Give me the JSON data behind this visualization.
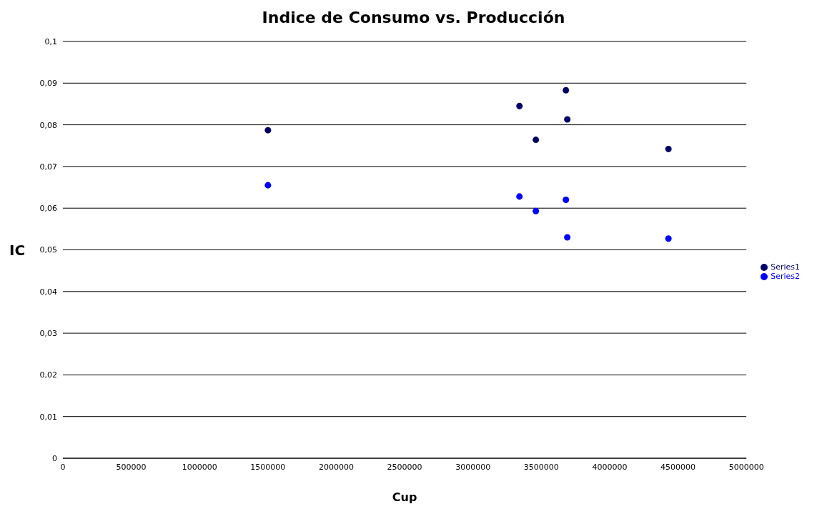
{
  "chart_data": {
    "type": "scatter",
    "title": "Indice de Consumo vs. Producción",
    "xlabel": "Cup",
    "ylabel": "IC",
    "xlim": [
      0,
      5000000
    ],
    "xticks": [
      0,
      500000,
      1000000,
      1500000,
      2000000,
      2500000,
      3000000,
      3500000,
      4000000,
      4500000,
      5000000
    ],
    "ylim": [
      0,
      0.1
    ],
    "yticks": [
      {
        "value": 0,
        "label": "0"
      },
      {
        "value": 0.01,
        "label": "0,01"
      },
      {
        "value": 0.02,
        "label": "0,02"
      },
      {
        "value": 0.03,
        "label": "0,03"
      },
      {
        "value": 0.04,
        "label": "0,04"
      },
      {
        "value": 0.05,
        "label": "0,05"
      },
      {
        "value": 0.06,
        "label": "0,06"
      },
      {
        "value": 0.07,
        "label": "0,07"
      },
      {
        "value": 0.08,
        "label": "0,08"
      },
      {
        "value": 0.09,
        "label": "0,09"
      },
      {
        "value": 0.1,
        "label": "0,1"
      }
    ],
    "grid": "y",
    "legend": "right",
    "marker": "circle",
    "x": [
      1500000,
      3340000,
      3680000,
      3690000,
      3460000,
      4430000
    ],
    "series": [
      {
        "name": "Series1",
        "color": "#000066",
        "values": [
          0.0787,
          0.0845,
          0.0883,
          0.0813,
          0.0764,
          0.0742
        ]
      },
      {
        "name": "Series2",
        "color": "#0000ff",
        "values": [
          0.0655,
          0.0628,
          0.062,
          0.053,
          0.0593,
          0.0527
        ]
      }
    ]
  }
}
